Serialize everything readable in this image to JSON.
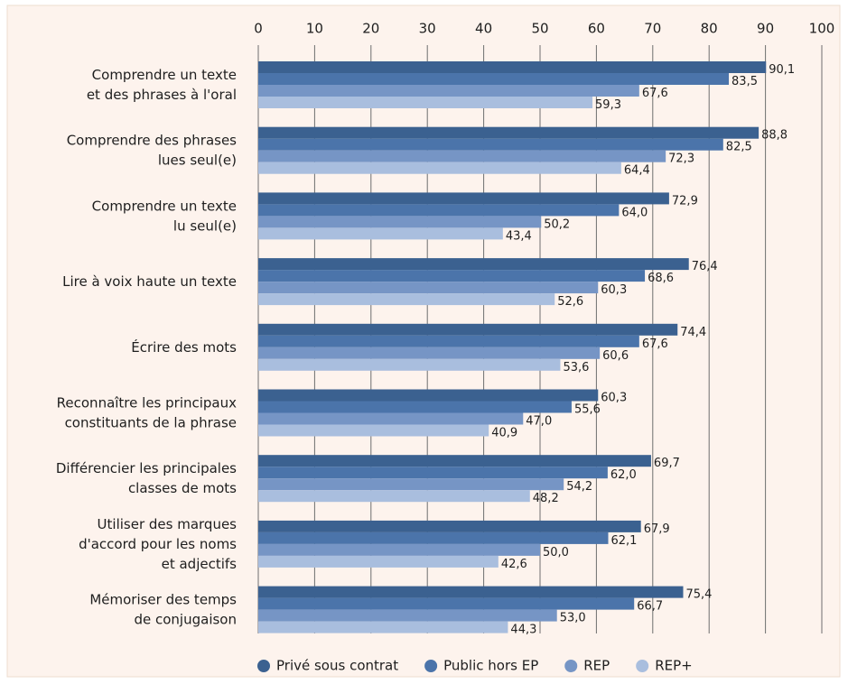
{
  "chart_data": {
    "type": "hbar",
    "categories": [
      "Comprendre un texte\net des phrases à l'oral",
      "Comprendre des phrases\nlues seul(e)",
      "Comprendre un texte\nlu seul(e)",
      "Lire à voix haute un texte",
      "Écrire des mots",
      "Reconnaître les principaux\nconstituants de la phrase",
      "Différencier les principales\nclasses de mots",
      "Utiliser des marques\nd'accord pour les noms\net adjectifs",
      "Mémoriser des temps\nde conjugaison"
    ],
    "series": [
      {
        "name": "Privé sous contrat",
        "color": "#3b6190",
        "values": [
          90.1,
          88.8,
          72.9,
          76.4,
          74.4,
          60.3,
          69.7,
          67.9,
          75.4
        ],
        "value_labels": [
          "90,1",
          "88,8",
          "72,9",
          "76,4",
          "74,4",
          "60,3",
          "69,7",
          "67,9",
          "75,4"
        ]
      },
      {
        "name": "Public hors EP",
        "color": "#4b74aa",
        "values": [
          83.5,
          82.5,
          64.0,
          68.6,
          67.6,
          55.6,
          62.0,
          62.1,
          66.7
        ],
        "value_labels": [
          "83,5",
          "82,5",
          "64,0",
          "68,6",
          "67,6",
          "55,6",
          "62,0",
          "62,1",
          "66,7"
        ]
      },
      {
        "name": "REP",
        "color": "#7695c5",
        "values": [
          67.6,
          72.3,
          50.2,
          60.3,
          60.6,
          47.0,
          54.2,
          50.0,
          53.0
        ],
        "value_labels": [
          "67,6",
          "72,3",
          "50,2",
          "60,3",
          "60,6",
          "47,0",
          "54,2",
          "50,0",
          "53,0"
        ]
      },
      {
        "name": "REP+",
        "color": "#a9bede",
        "values": [
          59.3,
          64.4,
          43.4,
          52.6,
          53.6,
          40.9,
          48.2,
          42.6,
          44.3
        ],
        "value_labels": [
          "59,3",
          "64,4",
          "43,4",
          "52,6",
          "53,6",
          "40,9",
          "48,2",
          "42,6",
          "44,3"
        ]
      }
    ],
    "xlim": [
      0,
      100
    ],
    "xticks": [
      0,
      10,
      20,
      30,
      40,
      50,
      60,
      70,
      80,
      90,
      100
    ],
    "grid": true,
    "legend": "bottom"
  }
}
